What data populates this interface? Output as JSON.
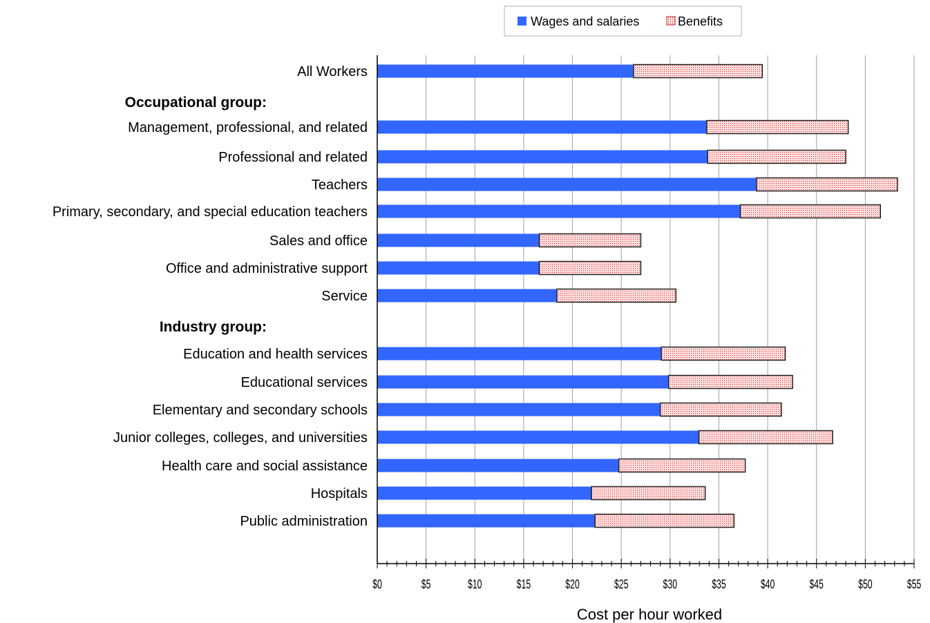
{
  "chart_data": {
    "type": "bar",
    "orientation": "horizontal",
    "stacked": true,
    "xlabel": "Cost per hour worked",
    "xlim": [
      0,
      55
    ],
    "x_tick_step": 5,
    "x_tick_prefix": "$",
    "grid": "vertical",
    "legend": {
      "placement": "top-right",
      "entries": [
        "Wages and salaries",
        "Benefits"
      ]
    },
    "rows": [
      {
        "label": "All Workers",
        "kind": "category",
        "wages": 26.25,
        "benefits": 13.2
      },
      {
        "label": "Occupational group:",
        "kind": "group"
      },
      {
        "label": "Management, professional, and related",
        "kind": "category",
        "wages": 33.75,
        "benefits": 14.5
      },
      {
        "label": "Professional and related",
        "kind": "category",
        "wages": 33.85,
        "benefits": 14.15
      },
      {
        "label": "Teachers",
        "kind": "category",
        "wages": 38.85,
        "benefits": 14.45
      },
      {
        "label": "Primary, secondary, and special education teachers",
        "kind": "category",
        "wages": 37.2,
        "benefits": 14.35
      },
      {
        "label": "Sales and office",
        "kind": "category",
        "wages": 16.6,
        "benefits": 10.4
      },
      {
        "label": "Office and administrative support",
        "kind": "category",
        "wages": 16.6,
        "benefits": 10.4
      },
      {
        "label": "Service",
        "kind": "category",
        "wages": 18.4,
        "benefits": 12.2
      },
      {
        "label": "Industry group:",
        "kind": "group"
      },
      {
        "label": "Education and health services",
        "kind": "category",
        "wages": 29.1,
        "benefits": 12.7
      },
      {
        "label": "Educational services",
        "kind": "category",
        "wages": 29.85,
        "benefits": 12.7
      },
      {
        "label": "Elementary and secondary schools",
        "kind": "category",
        "wages": 29.0,
        "benefits": 12.4
      },
      {
        "label": "Junior colleges, colleges, and universities",
        "kind": "category",
        "wages": 32.95,
        "benefits": 13.7
      },
      {
        "label": "Health care and social assistance",
        "kind": "category",
        "wages": 24.75,
        "benefits": 12.95
      },
      {
        "label": "Hospitals",
        "kind": "category",
        "wages": 21.95,
        "benefits": 11.65
      },
      {
        "label": "Public administration",
        "kind": "category",
        "wages": 22.3,
        "benefits": 14.25
      }
    ],
    "series": [
      {
        "name": "Wages and salaries",
        "key": "wages",
        "color": "#3366ff"
      },
      {
        "name": "Benefits",
        "key": "benefits",
        "color": "#ffcccc",
        "pattern": "dotted",
        "pattern_color": "#cc0000"
      }
    ]
  }
}
